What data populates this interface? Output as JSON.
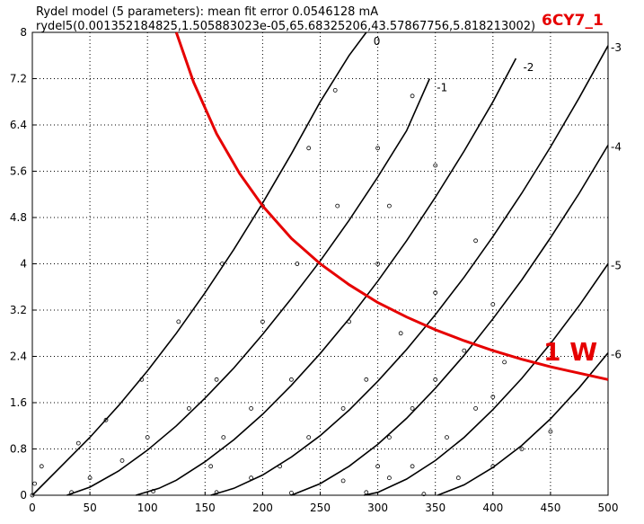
{
  "chart_data": {
    "type": "line",
    "title_lines": [
      "Rydel model (5 parameters): mean fit error 0.0546128 mA",
      "rydel5(0.001352184825,1.505883023e-05,65.68325206,43.57867756,5.818213002)"
    ],
    "tube_label": "6CY7_1",
    "power_label": "1 W",
    "xlim": [
      0,
      500
    ],
    "ylim": [
      0,
      8
    ],
    "x_ticks": [
      "0",
      "50",
      "100",
      "150",
      "200",
      "250",
      "300",
      "350",
      "400",
      "450",
      "500"
    ],
    "y_ticks": [
      "0",
      "0.8",
      "1.6",
      "2.4",
      "3.2",
      "4",
      "4.8",
      "5.6",
      "6.4",
      "7.2",
      "8"
    ],
    "grid": true,
    "colors": {
      "curve": "#000000",
      "power": "#e60000",
      "grid": "#000000"
    },
    "series": [
      {
        "name": "0",
        "x": [
          0,
          25,
          50,
          75,
          100,
          125,
          150,
          175,
          200,
          225,
          250,
          275,
          290
        ],
        "y": [
          0,
          0.5,
          1.0,
          1.55,
          2.15,
          2.8,
          3.5,
          4.25,
          5.05,
          5.9,
          6.8,
          7.6,
          8.0
        ]
      },
      {
        "name": "-1",
        "x": [
          30,
          50,
          75,
          100,
          125,
          150,
          175,
          200,
          225,
          250,
          275,
          300,
          325,
          345
        ],
        "y": [
          0,
          0.14,
          0.42,
          0.78,
          1.2,
          1.68,
          2.2,
          2.78,
          3.4,
          4.05,
          4.75,
          5.5,
          6.3,
          7.2
        ]
      },
      {
        "name": "-2",
        "x": [
          90,
          110,
          125,
          150,
          175,
          200,
          225,
          250,
          275,
          300,
          325,
          350,
          375,
          400,
          420
        ],
        "y": [
          0,
          0.12,
          0.26,
          0.58,
          0.96,
          1.4,
          1.9,
          2.45,
          3.05,
          3.7,
          4.4,
          5.15,
          5.95,
          6.8,
          7.55
        ]
      },
      {
        "name": "-3",
        "x": [
          155,
          175,
          200,
          225,
          250,
          275,
          300,
          325,
          350,
          375,
          400,
          425,
          450,
          475,
          500
        ],
        "y": [
          0,
          0.12,
          0.35,
          0.66,
          1.03,
          1.47,
          1.97,
          2.52,
          3.12,
          3.77,
          4.47,
          5.22,
          6.02,
          6.87,
          7.77
        ]
      },
      {
        "name": "-4",
        "x": [
          225,
          250,
          275,
          300,
          325,
          350,
          375,
          400,
          425,
          450,
          475,
          500
        ],
        "y": [
          0,
          0.2,
          0.5,
          0.88,
          1.33,
          1.85,
          2.42,
          3.05,
          3.72,
          4.45,
          5.22,
          6.05
        ]
      },
      {
        "name": "-5",
        "x": [
          288,
          300,
          325,
          350,
          375,
          400,
          425,
          450,
          475,
          500
        ],
        "y": [
          0,
          0.05,
          0.28,
          0.6,
          1.0,
          1.48,
          2.02,
          2.62,
          3.28,
          4.0
        ]
      },
      {
        "name": "-6",
        "x": [
          352,
          375,
          400,
          425,
          450,
          475,
          500
        ],
        "y": [
          0,
          0.18,
          0.48,
          0.86,
          1.32,
          1.86,
          2.46
        ]
      }
    ],
    "measured_points": [
      [
        0,
        0
      ],
      [
        2,
        0.2
      ],
      [
        8,
        0.5
      ],
      [
        40,
        0.9
      ],
      [
        64,
        1.3
      ],
      [
        95,
        2.0
      ],
      [
        127,
        3.0
      ],
      [
        165,
        4.0
      ],
      [
        200,
        5.0
      ],
      [
        240,
        6.0
      ],
      [
        263,
        7.0
      ],
      [
        34,
        0.05
      ],
      [
        50,
        0.3
      ],
      [
        78,
        0.6
      ],
      [
        100,
        1.0
      ],
      [
        136,
        1.5
      ],
      [
        160,
        2.0
      ],
      [
        200,
        3.0
      ],
      [
        230,
        4.0
      ],
      [
        265,
        5.0
      ],
      [
        300,
        6.0
      ],
      [
        330,
        6.9
      ],
      [
        105,
        0.07
      ],
      [
        155,
        0.5
      ],
      [
        166,
        1.0
      ],
      [
        190,
        1.5
      ],
      [
        225,
        2.0
      ],
      [
        275,
        3.0
      ],
      [
        300,
        4.0
      ],
      [
        310,
        5.0
      ],
      [
        350,
        5.7
      ],
      [
        160,
        0.05
      ],
      [
        190,
        0.3
      ],
      [
        215,
        0.5
      ],
      [
        240,
        1.0
      ],
      [
        270,
        1.5
      ],
      [
        290,
        2.0
      ],
      [
        320,
        2.8
      ],
      [
        350,
        3.5
      ],
      [
        385,
        4.4
      ],
      [
        225,
        0.04
      ],
      [
        270,
        0.25
      ],
      [
        300,
        0.5
      ],
      [
        310,
        1.0
      ],
      [
        330,
        1.5
      ],
      [
        350,
        2.0
      ],
      [
        375,
        2.5
      ],
      [
        400,
        3.3
      ],
      [
        290,
        0.05
      ],
      [
        310,
        0.3
      ],
      [
        330,
        0.5
      ],
      [
        360,
        1.0
      ],
      [
        385,
        1.5
      ],
      [
        400,
        1.7
      ],
      [
        410,
        2.3
      ],
      [
        340,
        0.02
      ],
      [
        370,
        0.3
      ],
      [
        400,
        0.5
      ],
      [
        425,
        0.8
      ],
      [
        450,
        1.1
      ]
    ],
    "power_curve": {
      "watts": 1,
      "x": [
        125,
        140,
        160,
        180,
        200,
        225,
        250,
        275,
        300,
        325,
        350,
        375,
        400,
        425,
        450,
        475,
        500
      ],
      "y": [
        8.0,
        7.14,
        6.25,
        5.56,
        5.0,
        4.44,
        4.0,
        3.64,
        3.33,
        3.08,
        2.86,
        2.67,
        2.5,
        2.35,
        2.22,
        2.11,
        2.0
      ]
    }
  }
}
